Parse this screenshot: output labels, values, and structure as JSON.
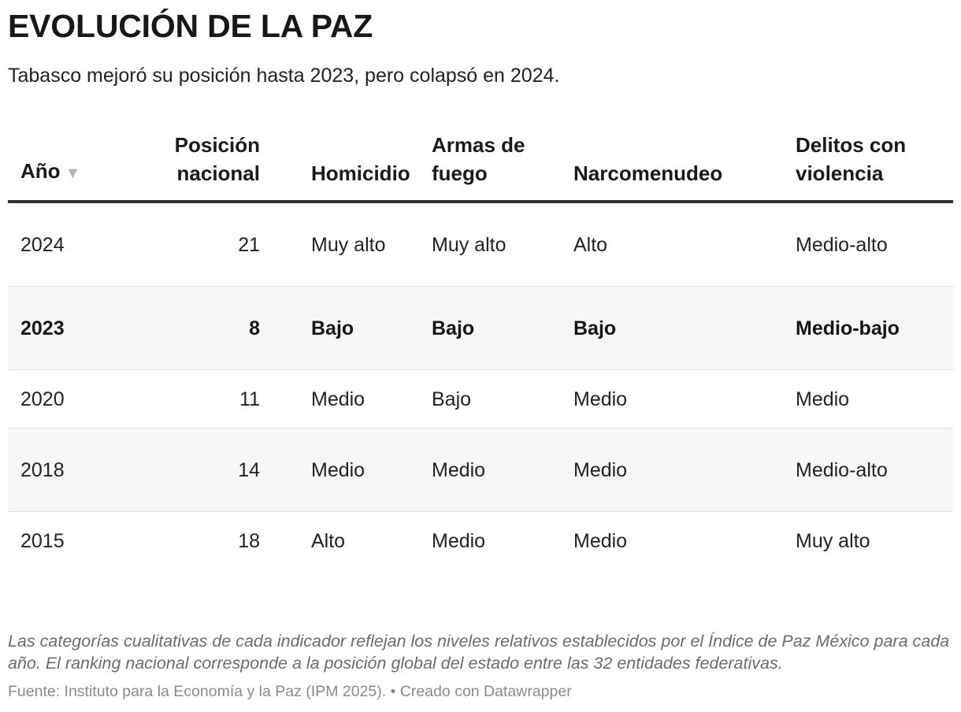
{
  "chart_data": {
    "type": "table",
    "title": "EVOLUCIÓN DE LA PAZ",
    "subtitle": "Tabasco mejoró su posición hasta 2023, pero colapsó en 2024.",
    "columns": [
      "Año",
      "Posición nacional",
      "Homicidio",
      "Armas de fuego",
      "Narcomenudeo",
      "Delitos con violencia"
    ],
    "sort": {
      "column": "Año",
      "direction": "descending",
      "icon": "sort-down-triangle-icon"
    },
    "rows": [
      {
        "year": "2024",
        "position": 21,
        "homicidio": "Muy alto",
        "armas": "Muy alto",
        "narcomenudeo": "Alto",
        "delitos": "Medio-alto",
        "highlight": false
      },
      {
        "year": "2023",
        "position": 8,
        "homicidio": "Bajo",
        "armas": "Bajo",
        "narcomenudeo": "Bajo",
        "delitos": "Medio-bajo",
        "highlight": true
      },
      {
        "year": "2020",
        "position": 11,
        "homicidio": "Medio",
        "armas": "Bajo",
        "narcomenudeo": "Medio",
        "delitos": "Medio",
        "highlight": false
      },
      {
        "year": "2018",
        "position": 14,
        "homicidio": "Medio",
        "armas": "Medio",
        "narcomenudeo": "Medio",
        "delitos": "Medio-alto",
        "highlight": false
      },
      {
        "year": "2015",
        "position": 18,
        "homicidio": "Alto",
        "armas": "Medio",
        "narcomenudeo": "Medio",
        "delitos": "Muy alto",
        "highlight": false
      }
    ],
    "notes": "Las categorías cualitativas de cada indicador reflejan los niveles relativos establecidos por el Índice de Paz México para cada año. El ranking nacional corresponde a la posición global del estado entre las 32 entidades federativas.",
    "source": "Fuente: Instituto para la Economía y la Paz (IPM 2025). • Creado con Datawrapper",
    "colors": {
      "header_rule": "#333333",
      "row_stripe": "#f7f7f7",
      "row_divider": "#dedede",
      "note_text": "#6b6b6b"
    }
  }
}
